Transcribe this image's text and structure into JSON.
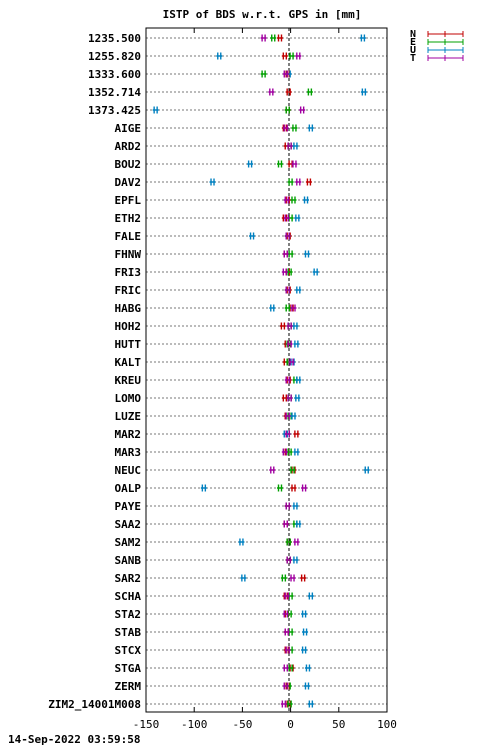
{
  "chart_data": {
    "type": "scatter",
    "title": "ISTP of BDS w.r.t. GPS in [mm]",
    "xlim": [
      -150,
      100
    ],
    "xticks": [
      -150,
      -100,
      -50,
      0,
      50,
      100
    ],
    "grid": "horizontal dotted",
    "legend": "top-right",
    "series_colors": {
      "N": "#c00000",
      "E": "#00a000",
      "U": "#0080c0",
      "T": "#a000a0"
    },
    "categories": [
      "1235.500",
      "1255.820",
      "1333.600",
      "1352.714",
      "1373.425",
      "AIGE",
      "ARD2",
      "BOU2",
      "DAV2",
      "EPFL",
      "ETH2",
      "FALE",
      "FHNW",
      "FRI3",
      "FRIC",
      "HABG",
      "HOH2",
      "HUTT",
      "KALT",
      "KREU",
      "LOMO",
      "LUZE",
      "MAR2",
      "MAR3",
      "NEUC",
      "OALP",
      "PAYE",
      "SAA2",
      "SAM2",
      "SANB",
      "SAR2",
      "SCHA",
      "STA2",
      "STAB",
      "STCX",
      "STGA",
      "ZERM",
      "ZIM2_14001M008"
    ],
    "series": [
      {
        "name": "N",
        "values": [
          -11,
          -6,
          -3,
          -2,
          -3,
          -6,
          -4,
          0,
          19,
          -3,
          -6,
          -2,
          -5,
          -3,
          -2,
          1,
          -8,
          -4,
          -5,
          -2,
          -6,
          -4,
          6,
          -4,
          3,
          3,
          -3,
          -5,
          -2,
          -2,
          13,
          -5,
          -4,
          -4,
          -4,
          1,
          -3,
          -2
        ]
      },
      {
        "name": "E",
        "values": [
          -18,
          1,
          -28,
          20,
          -3,
          4,
          -1,
          -11,
          0,
          3,
          0,
          -3,
          0,
          -1,
          -3,
          -3,
          -1,
          -2,
          -2,
          5,
          -1,
          -1,
          -3,
          -1,
          2,
          -11,
          -3,
          5,
          -2,
          -2,
          -7,
          0,
          -1,
          0,
          0,
          0,
          -2,
          -1
        ]
      },
      {
        "name": "U",
        "values": [
          75,
          -74,
          -2,
          76,
          -140,
          21,
          5,
          -42,
          -81,
          16,
          7,
          -40,
          17,
          26,
          8,
          -19,
          5,
          6,
          2,
          8,
          7,
          3,
          -5,
          6,
          79,
          -90,
          5,
          8,
          -51,
          5,
          -49,
          21,
          14,
          15,
          14,
          18,
          17,
          21
        ]
      },
      {
        "name": "T",
        "values": [
          -28,
          8,
          -5,
          -20,
          12,
          -5,
          -1,
          4,
          8,
          -4,
          -4,
          -3,
          -5,
          -6,
          -3,
          3,
          -1,
          -1,
          1,
          -3,
          -1,
          -3,
          -3,
          -6,
          -19,
          14,
          -3,
          -5,
          6,
          -2,
          2,
          -4,
          -5,
          -4,
          -3,
          -5,
          -5,
          -7
        ]
      }
    ]
  },
  "legend": {
    "labels": [
      "N",
      "E",
      "U",
      "T"
    ]
  },
  "footer": {
    "timestamp": "14-Sep-2022 03:59:58"
  }
}
